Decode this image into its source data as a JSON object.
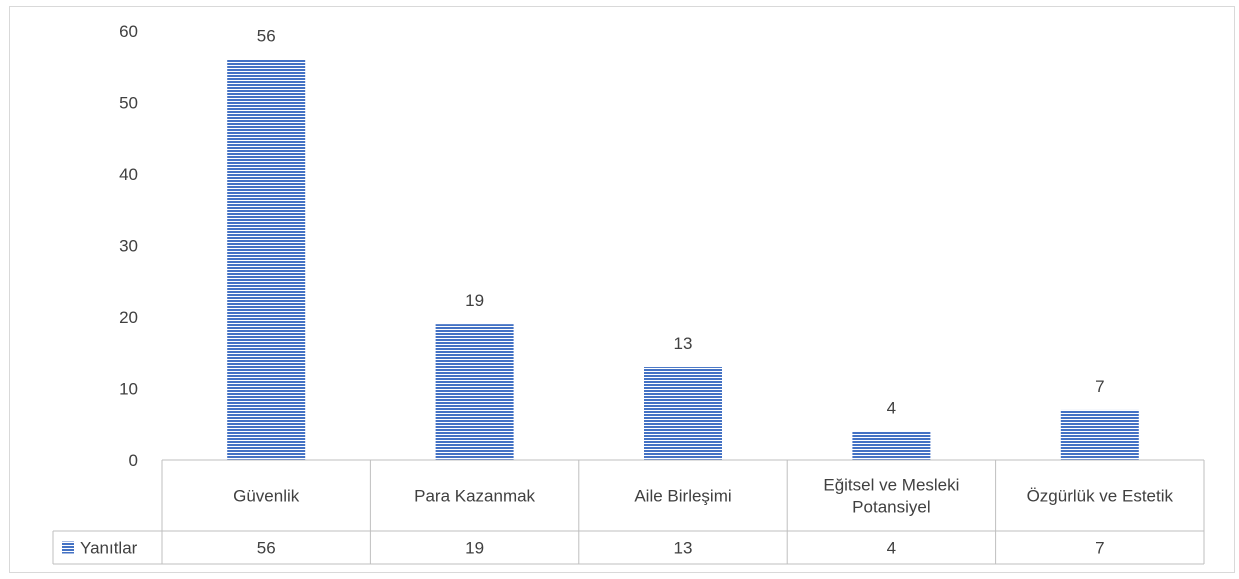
{
  "chart_data": {
    "type": "bar",
    "categories": [
      "Güvenlik",
      "Para Kazanmak",
      "Aile Birleşimi",
      "Eğitsel ve Mesleki Potansiyel",
      "Özgürlük ve Estetik"
    ],
    "category_lines": [
      [
        "Güvenlik"
      ],
      [
        "Para Kazanmak"
      ],
      [
        "Aile Birleşimi"
      ],
      [
        "Eğitsel ve Mesleki",
        "Potansiyel"
      ],
      [
        "Özgürlük ve Estetik"
      ]
    ],
    "series": [
      {
        "name": "Yanıtlar",
        "values": [
          56,
          19,
          13,
          4,
          7
        ]
      }
    ],
    "value_labels": [
      "56",
      "19",
      "13",
      "4",
      "7"
    ],
    "y_ticks": [
      "0",
      "10",
      "20",
      "30",
      "40",
      "50",
      "60"
    ],
    "ylim": [
      0,
      60
    ],
    "title": "",
    "xlabel": "",
    "ylabel": "",
    "grid": false,
    "legend": "data-table",
    "bar_color": "#4472c4",
    "bar_pattern": "horizontal-lines"
  }
}
